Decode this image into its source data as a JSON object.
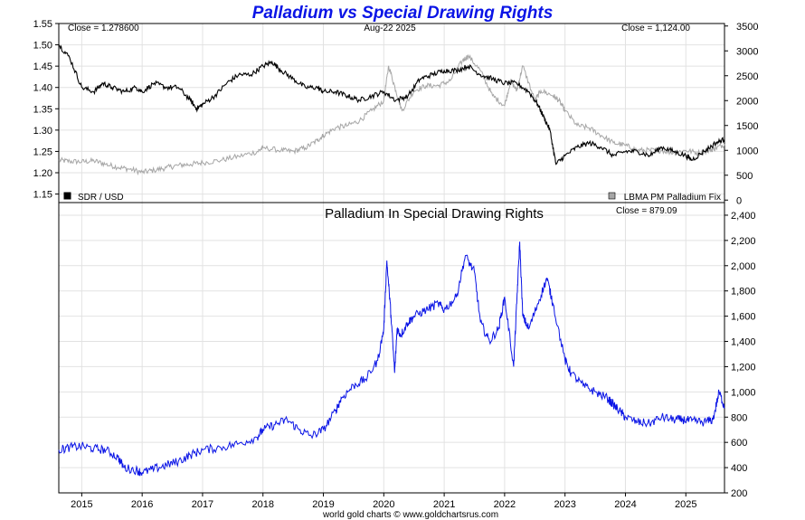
{
  "colors": {
    "title": "#0a14e6",
    "sdr": "#000000",
    "palladium_usd": "#a6a6a6",
    "palladium_sdr": "#0a14e6",
    "grid": "#e2e2e2"
  },
  "credit": "world gold charts © www.goldchartsrus.com",
  "chart_data": [
    {
      "type": "line",
      "title": "Palladium vs Special Drawing Rights",
      "date_label": "Aug-22  2025",
      "close_left": "Close = 1.278600",
      "close_right": "Close = 1,124.00",
      "grid": true,
      "x_ticks": [
        "2015",
        "2016",
        "2017",
        "2018",
        "2019",
        "2020",
        "2021",
        "2022",
        "2023",
        "2024",
        "2025"
      ],
      "x_range": [
        2014.62,
        2025.64
      ],
      "y_left": {
        "range": [
          1.13,
          1.55
        ],
        "ticks": [
          "1.15",
          "1.20",
          "1.25",
          "1.30",
          "1.35",
          "1.40",
          "1.45",
          "1.50",
          "1.55"
        ]
      },
      "y_right": {
        "range": [
          -50,
          3550
        ],
        "ticks": [
          "0",
          "500",
          "1000",
          "1500",
          "2000",
          "2500",
          "3000",
          "3500"
        ]
      },
      "legend": {
        "left": "SDR / USD",
        "right": "LBMA PM Palladium Fix",
        "placement": "bottom"
      },
      "series": [
        {
          "name": "SDR / USD",
          "axis": "left",
          "x": [
            2014.62,
            2014.8,
            2015.0,
            2015.2,
            2015.35,
            2015.5,
            2015.7,
            2015.9,
            2016.0,
            2016.2,
            2016.4,
            2016.6,
            2016.8,
            2016.9,
            2017.0,
            2017.2,
            2017.4,
            2017.6,
            2017.8,
            2018.0,
            2018.15,
            2018.3,
            2018.5,
            2018.7,
            2018.9,
            2019.0,
            2019.2,
            2019.4,
            2019.6,
            2019.8,
            2020.0,
            2020.2,
            2020.4,
            2020.6,
            2020.8,
            2021.0,
            2021.2,
            2021.4,
            2021.6,
            2021.8,
            2022.0,
            2022.2,
            2022.4,
            2022.55,
            2022.65,
            2022.75,
            2022.85,
            2023.0,
            2023.2,
            2023.4,
            2023.6,
            2023.8,
            2024.0,
            2024.2,
            2024.4,
            2024.6,
            2024.8,
            2025.0,
            2025.1,
            2025.3,
            2025.5,
            2025.64
          ],
          "values": [
            1.5,
            1.47,
            1.4,
            1.39,
            1.41,
            1.4,
            1.39,
            1.4,
            1.39,
            1.41,
            1.4,
            1.4,
            1.37,
            1.35,
            1.36,
            1.38,
            1.41,
            1.43,
            1.43,
            1.45,
            1.46,
            1.44,
            1.42,
            1.4,
            1.4,
            1.39,
            1.39,
            1.38,
            1.37,
            1.38,
            1.39,
            1.37,
            1.38,
            1.42,
            1.43,
            1.44,
            1.44,
            1.45,
            1.43,
            1.42,
            1.41,
            1.41,
            1.39,
            1.36,
            1.33,
            1.3,
            1.22,
            1.24,
            1.26,
            1.27,
            1.26,
            1.24,
            1.25,
            1.25,
            1.24,
            1.26,
            1.25,
            1.24,
            1.23,
            1.25,
            1.27,
            1.2786
          ]
        },
        {
          "name": "LBMA PM Palladium Fix",
          "axis": "right",
          "x": [
            2014.62,
            2014.8,
            2015.0,
            2015.2,
            2015.4,
            2015.6,
            2015.8,
            2016.0,
            2016.2,
            2016.4,
            2016.6,
            2016.8,
            2017.0,
            2017.3,
            2017.6,
            2017.9,
            2018.0,
            2018.3,
            2018.5,
            2018.7,
            2018.9,
            2019.0,
            2019.2,
            2019.4,
            2019.6,
            2019.8,
            2020.0,
            2020.08,
            2020.2,
            2020.3,
            2020.5,
            2020.7,
            2020.9,
            2021.1,
            2021.3,
            2021.4,
            2021.6,
            2021.8,
            2022.0,
            2022.1,
            2022.2,
            2022.3,
            2022.5,
            2022.6,
            2022.8,
            2022.9,
            2023.0,
            2023.2,
            2023.4,
            2023.6,
            2023.8,
            2024.0,
            2024.2,
            2024.4,
            2024.6,
            2024.8,
            2025.0,
            2025.2,
            2025.4,
            2025.5,
            2025.64
          ],
          "values": [
            800,
            780,
            770,
            790,
            720,
            660,
            620,
            560,
            600,
            650,
            700,
            720,
            750,
            800,
            880,
            970,
            1050,
            1000,
            980,
            1050,
            1200,
            1300,
            1450,
            1500,
            1600,
            1800,
            2000,
            2700,
            2200,
            1800,
            2200,
            2300,
            2300,
            2400,
            2800,
            2900,
            2600,
            2100,
            1900,
            2400,
            2200,
            2700,
            2000,
            2200,
            2100,
            2000,
            1800,
            1500,
            1450,
            1300,
            1150,
            1100,
            1000,
            1000,
            1000,
            950,
            1000,
            950,
            1000,
            1050,
            1124
          ]
        }
      ]
    },
    {
      "type": "line",
      "title": "Palladium In Special Drawing Rights",
      "close_label": "Close = 879.09",
      "grid": true,
      "x_ticks": [
        "2015",
        "2016",
        "2017",
        "2018",
        "2019",
        "2020",
        "2021",
        "2022",
        "2023",
        "2024",
        "2025"
      ],
      "x_range": [
        2014.62,
        2025.64
      ],
      "y_range": [
        200,
        2500
      ],
      "y_ticks": [
        "200",
        "400",
        "600",
        "800",
        "1,000",
        "1,200",
        "1,400",
        "1,600",
        "1,800",
        "2,000",
        "2,200",
        "2,400"
      ],
      "series": [
        {
          "name": "",
          "x": [
            2014.62,
            2014.8,
            2015.0,
            2015.2,
            2015.4,
            2015.6,
            2015.7,
            2015.9,
            2016.0,
            2016.2,
            2016.4,
            2016.6,
            2016.8,
            2017.0,
            2017.3,
            2017.6,
            2017.9,
            2018.0,
            2018.2,
            2018.4,
            2018.6,
            2018.8,
            2019.0,
            2019.2,
            2019.3,
            2019.5,
            2019.7,
            2019.9,
            2020.0,
            2020.05,
            2020.12,
            2020.18,
            2020.22,
            2020.28,
            2020.4,
            2020.5,
            2020.7,
            2020.9,
            2021.0,
            2021.2,
            2021.35,
            2021.5,
            2021.6,
            2021.75,
            2021.9,
            2022.0,
            2022.15,
            2022.2,
            2022.25,
            2022.3,
            2022.4,
            2022.55,
            2022.7,
            2022.8,
            2023.0,
            2023.1,
            2023.3,
            2023.5,
            2023.7,
            2023.8,
            2023.9,
            2024.0,
            2024.2,
            2024.4,
            2024.6,
            2024.8,
            2024.95,
            2025.1,
            2025.3,
            2025.45,
            2025.55,
            2025.64
          ],
          "values": [
            540,
            560,
            570,
            550,
            540,
            480,
            400,
            380,
            360,
            390,
            420,
            450,
            500,
            540,
            560,
            590,
            640,
            700,
            740,
            780,
            700,
            650,
            700,
            850,
            950,
            1050,
            1100,
            1250,
            1500,
            2040,
            1600,
            1150,
            1500,
            1450,
            1550,
            1600,
            1650,
            1700,
            1650,
            1750,
            2080,
            1950,
            1550,
            1400,
            1500,
            1750,
            1200,
            1700,
            2190,
            1600,
            1500,
            1700,
            1900,
            1700,
            1250,
            1150,
            1050,
            1000,
            950,
            900,
            850,
            800,
            760,
            750,
            800,
            780,
            780,
            770,
            760,
            780,
            1000,
            879.09
          ]
        }
      ]
    }
  ]
}
